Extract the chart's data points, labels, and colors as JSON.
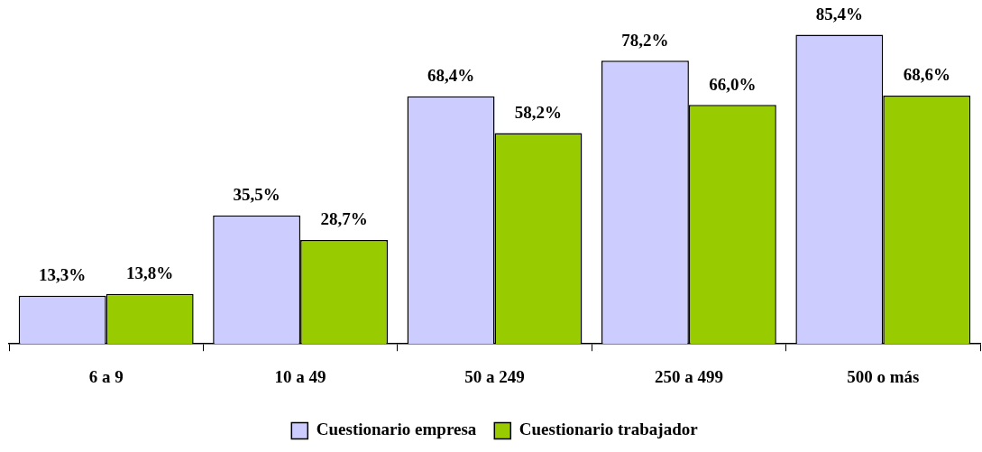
{
  "chart_data": {
    "type": "bar",
    "categories": [
      "6 a 9",
      "10 a 49",
      "50 a 249",
      "250 a 499",
      "500 o más"
    ],
    "series": [
      {
        "name": "Cuestionario empresa",
        "color": "#ccccff",
        "values": [
          13.3,
          35.5,
          68.4,
          78.2,
          85.4
        ],
        "value_labels": [
          "13,3%",
          "35,5%",
          "68,4%",
          "78,2%",
          "85,4%"
        ]
      },
      {
        "name": "Cuestionario trabajador",
        "color": "#99cc00",
        "values": [
          13.8,
          28.7,
          58.2,
          66.0,
          68.6
        ],
        "value_labels": [
          "13,8%",
          "28,7%",
          "58,2%",
          "66,0%",
          "68,6%"
        ]
      }
    ],
    "legend": "bottom",
    "grid": false
  }
}
